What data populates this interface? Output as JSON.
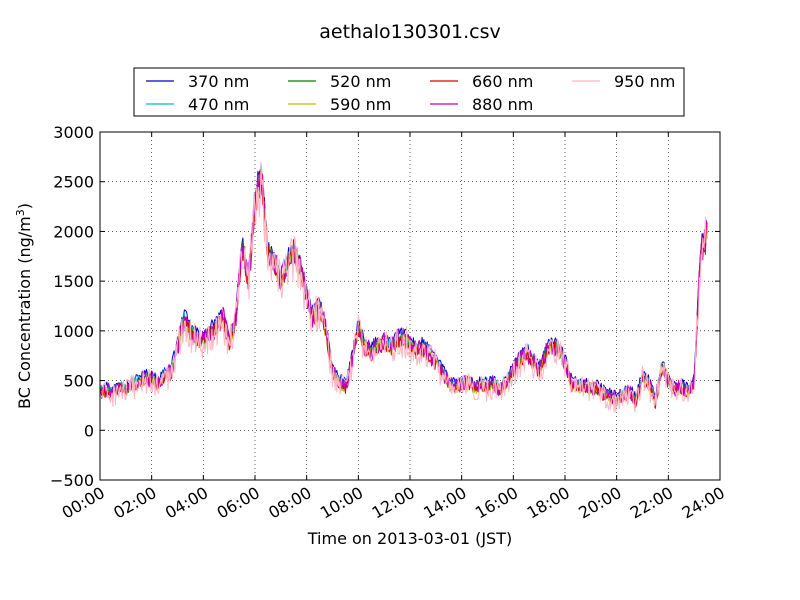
{
  "chart_data": {
    "type": "line",
    "title": "aethalo130301.csv",
    "xlabel": "Time on 2013-03-01 (JST)",
    "ylabel": "BC Concentration (ng/m³)",
    "ylabel_main": "BC Concentration (ng/m",
    "ylabel_sup": "3",
    "ylabel_close": ")",
    "xlim": [
      0,
      24
    ],
    "ylim": [
      -500,
      3000
    ],
    "grid": true,
    "legend_position": "top",
    "x_tick_labels": [
      "00:00",
      "02:00",
      "04:00",
      "06:00",
      "08:00",
      "10:00",
      "12:00",
      "14:00",
      "16:00",
      "18:00",
      "20:00",
      "22:00",
      "24:00"
    ],
    "x_tick_values": [
      0,
      2,
      4,
      6,
      8,
      10,
      12,
      14,
      16,
      18,
      20,
      22,
      24
    ],
    "y_tick_values": [
      -500,
      0,
      500,
      1000,
      1500,
      2000,
      2500,
      3000
    ],
    "y_tick_labels": [
      "−500",
      "0",
      "500",
      "1000",
      "1500",
      "2000",
      "2500",
      "3000"
    ],
    "base_profile": {
      "x": [
        0,
        0.25,
        0.5,
        0.75,
        1.0,
        1.25,
        1.5,
        1.75,
        2.0,
        2.25,
        2.5,
        2.75,
        3.0,
        3.25,
        3.5,
        3.75,
        4.0,
        4.25,
        4.5,
        4.75,
        5.0,
        5.25,
        5.5,
        5.75,
        6.0,
        6.25,
        6.5,
        6.75,
        7.0,
        7.25,
        7.5,
        7.75,
        8.0,
        8.25,
        8.5,
        8.75,
        9.0,
        9.25,
        9.5,
        9.75,
        10.0,
        10.25,
        10.5,
        10.75,
        11.0,
        11.25,
        11.5,
        11.75,
        12.0,
        12.25,
        12.5,
        12.75,
        13.0,
        13.25,
        13.5,
        13.75,
        14.0,
        14.25,
        14.5,
        14.75,
        15.0,
        15.25,
        15.5,
        15.75,
        16.0,
        16.25,
        16.5,
        16.75,
        17.0,
        17.25,
        17.5,
        17.75,
        18.0,
        18.25,
        18.5,
        18.75,
        19.0,
        19.25,
        19.5,
        19.75,
        20.0,
        20.25,
        20.5,
        20.75,
        21.0,
        21.25,
        21.5,
        21.75,
        22.0,
        22.25,
        22.5,
        22.75,
        23.0,
        23.25,
        23.5
      ],
      "y": [
        400,
        420,
        380,
        450,
        420,
        470,
        500,
        540,
        520,
        480,
        560,
        600,
        850,
        1150,
        1000,
        950,
        900,
        1000,
        1050,
        1150,
        900,
        1100,
        1900,
        1500,
        2300,
        2600,
        1800,
        1700,
        1500,
        1700,
        1800,
        1650,
        1350,
        1150,
        1250,
        1000,
        600,
        500,
        450,
        700,
        1050,
        850,
        800,
        880,
        900,
        850,
        920,
        950,
        880,
        820,
        850,
        780,
        700,
        600,
        480,
        440,
        460,
        500,
        430,
        470,
        450,
        480,
        420,
        500,
        620,
        720,
        800,
        700,
        620,
        780,
        880,
        820,
        700,
        480,
        450,
        460,
        420,
        430,
        380,
        350,
        320,
        360,
        400,
        300,
        550,
        480,
        300,
        650,
        500,
        420,
        450,
        400,
        500,
        1800,
        2000
      ]
    },
    "series": [
      {
        "name": "370 nm",
        "color": "#0000cc",
        "offset": 40,
        "noise": 45
      },
      {
        "name": "470 nm",
        "color": "#00bfbf",
        "offset": 10,
        "noise": 45
      },
      {
        "name": "520 nm",
        "color": "#007f00",
        "offset": -20,
        "noise": 50
      },
      {
        "name": "590 nm",
        "color": "#bfbf00",
        "offset": -30,
        "noise": 55
      },
      {
        "name": "660 nm",
        "color": "#dd0000",
        "offset": -30,
        "noise": 65
      },
      {
        "name": "880 nm",
        "color": "#bf00bf",
        "offset": -10,
        "noise": 90
      },
      {
        "name": "950 nm",
        "color": "#ffb6c1",
        "offset": -40,
        "noise": 140
      }
    ]
  }
}
